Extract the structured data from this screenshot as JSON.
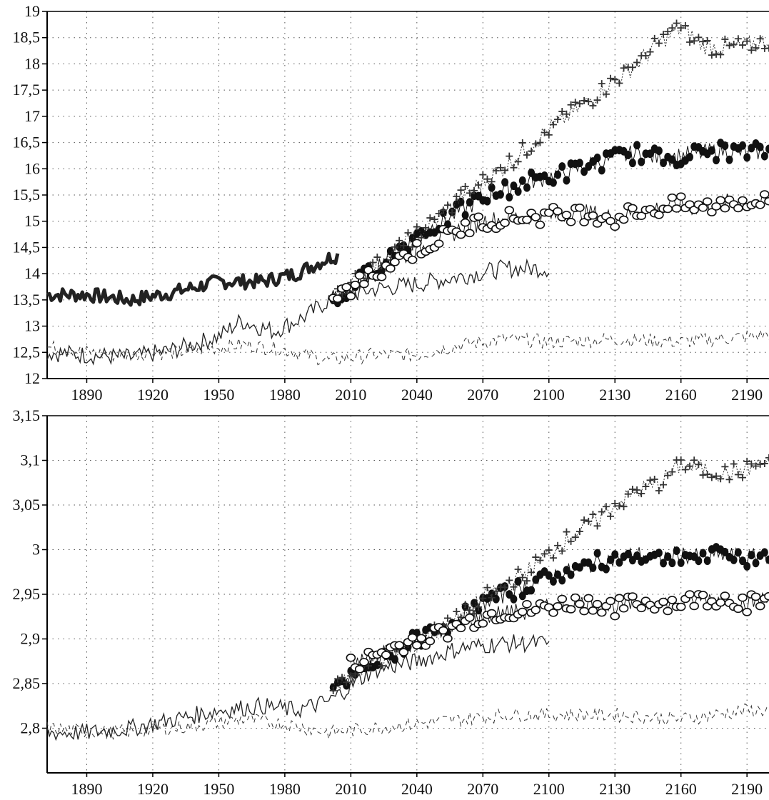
{
  "chart_data": [
    {
      "type": "line",
      "title": "",
      "xlabel": "",
      "ylabel": "",
      "xlim": [
        1872,
        2200
      ],
      "ylim": [
        12,
        19
      ],
      "x_ticks": [
        1890,
        1920,
        1950,
        1980,
        2010,
        2040,
        2070,
        2100,
        2130,
        2160,
        2190
      ],
      "x_tick_labels": [
        "1890",
        "1920",
        "1950",
        "1980",
        "2010",
        "2040",
        "2070",
        "2100",
        "2130",
        "2160",
        "2190"
      ],
      "y_ticks": [
        12,
        12.5,
        13,
        13.5,
        14,
        14.5,
        15,
        15.5,
        16,
        16.5,
        17,
        17.5,
        18,
        18.5,
        19
      ],
      "y_tick_labels": [
        "12",
        "12,5",
        "13",
        "13,5",
        "14",
        "14,5",
        "15",
        "15,5",
        "16",
        "16,5",
        "17",
        "17,5",
        "18",
        "18,5",
        "19"
      ],
      "grid": true,
      "series": [
        {
          "style": "thick-solid",
          "color": "#222222",
          "x": [
            1872,
            1890,
            1910,
            1930,
            1950,
            1970,
            1985,
            2000,
            2004
          ],
          "y": [
            13.6,
            13.6,
            13.5,
            13.65,
            13.85,
            13.85,
            14.0,
            14.3,
            14.35
          ]
        },
        {
          "style": "thin-solid",
          "color": "#222222",
          "x": [
            1872,
            1890,
            1910,
            1930,
            1950,
            1960,
            1975,
            1990,
            2000,
            2020,
            2040,
            2060,
            2080,
            2100
          ],
          "y": [
            12.5,
            12.45,
            12.4,
            12.55,
            12.8,
            13.1,
            12.9,
            13.2,
            13.5,
            13.7,
            13.8,
            13.95,
            14.1,
            14.1
          ]
        },
        {
          "style": "dashed",
          "color": "#333333",
          "x": [
            1872,
            1900,
            1930,
            1960,
            1980,
            2000,
            2020,
            2040,
            2060,
            2080,
            2100,
            2130,
            2160,
            2190,
            2200
          ],
          "y": [
            12.6,
            12.45,
            12.5,
            12.65,
            12.55,
            12.35,
            12.45,
            12.45,
            12.65,
            12.75,
            12.7,
            12.75,
            12.7,
            12.8,
            12.85
          ]
        },
        {
          "style": "filled-circle",
          "color": "#111111",
          "x": [
            2002,
            2010,
            2020,
            2030,
            2040,
            2050,
            2060,
            2070,
            2080,
            2090,
            2100,
            2110,
            2120,
            2130,
            2140,
            2150,
            2160,
            2170,
            2180,
            2190,
            2200
          ],
          "y": [
            13.4,
            13.7,
            14.1,
            14.4,
            14.75,
            14.95,
            15.2,
            15.45,
            15.6,
            15.75,
            15.85,
            15.95,
            16.1,
            16.2,
            16.3,
            16.2,
            16.25,
            16.3,
            16.35,
            16.3,
            16.35
          ]
        },
        {
          "style": "plus",
          "color": "#333333",
          "x": [
            2002,
            2010,
            2020,
            2030,
            2040,
            2050,
            2060,
            2070,
            2080,
            2090,
            2100,
            2110,
            2120,
            2130,
            2140,
            2150,
            2160,
            2170,
            2180,
            2190,
            2200
          ],
          "y": [
            13.5,
            13.8,
            14.1,
            14.4,
            14.75,
            15.05,
            15.45,
            15.75,
            16.05,
            16.4,
            16.75,
            17.05,
            17.35,
            17.7,
            18.0,
            18.4,
            18.7,
            18.35,
            18.3,
            18.35,
            18.45
          ]
        },
        {
          "style": "open-circle",
          "color": "#111111",
          "x": [
            2002,
            2010,
            2020,
            2030,
            2040,
            2050,
            2060,
            2070,
            2080,
            2090,
            2100,
            2110,
            2120,
            2130,
            2140,
            2150,
            2160,
            2170,
            2180,
            2190,
            2200
          ],
          "y": [
            13.5,
            13.7,
            14.0,
            14.25,
            14.45,
            14.65,
            14.85,
            15.0,
            15.05,
            15.1,
            15.1,
            15.15,
            15.15,
            15.05,
            15.2,
            15.25,
            15.3,
            15.25,
            15.35,
            15.4,
            15.35
          ]
        }
      ]
    },
    {
      "type": "line",
      "title": "",
      "xlabel": "",
      "ylabel": "",
      "xlim": [
        1872,
        2200
      ],
      "ylim": [
        2.75,
        3.15
      ],
      "x_ticks": [
        1890,
        1920,
        1950,
        1980,
        2010,
        2040,
        2070,
        2100,
        2130,
        2160,
        2190
      ],
      "x_tick_labels": [
        "1890",
        "1920",
        "1950",
        "1980",
        "2010",
        "2040",
        "2070",
        "2100",
        "2130",
        "2160",
        "2190"
      ],
      "y_ticks": [
        2.8,
        2.85,
        2.9,
        2.95,
        3.0,
        3.05,
        3.1,
        3.15
      ],
      "y_tick_labels": [
        "2,8",
        "2,85",
        "2,9",
        "2,95",
        "3",
        "3,05",
        "3,1",
        "3,15"
      ],
      "grid": true,
      "series": [
        {
          "style": "thin-solid",
          "color": "#222222",
          "x": [
            1872,
            1890,
            1910,
            1930,
            1950,
            1970,
            1985,
            2000,
            2020,
            2040,
            2060,
            2080,
            2100
          ],
          "y": [
            2.795,
            2.795,
            2.8,
            2.81,
            2.82,
            2.825,
            2.82,
            2.83,
            2.865,
            2.875,
            2.89,
            2.895,
            2.895
          ]
        },
        {
          "style": "dashed",
          "color": "#333333",
          "x": [
            1872,
            1900,
            1930,
            1960,
            1980,
            2000,
            2020,
            2040,
            2060,
            2080,
            2100,
            2130,
            2160,
            2190,
            2200
          ],
          "y": [
            2.8,
            2.795,
            2.8,
            2.81,
            2.805,
            2.795,
            2.8,
            2.805,
            2.81,
            2.815,
            2.815,
            2.815,
            2.81,
            2.82,
            2.82
          ]
        },
        {
          "style": "filled-circle",
          "color": "#111111",
          "x": [
            2002,
            2010,
            2020,
            2030,
            2040,
            2050,
            2060,
            2070,
            2080,
            2090,
            2100,
            2110,
            2120,
            2130,
            2140,
            2150,
            2160,
            2170,
            2180,
            2190,
            2200
          ],
          "y": [
            2.84,
            2.855,
            2.87,
            2.885,
            2.9,
            2.91,
            2.925,
            2.94,
            2.95,
            2.96,
            2.97,
            2.975,
            2.985,
            2.99,
            2.995,
            2.99,
            2.995,
            2.99,
            2.995,
            2.99,
            2.995
          ]
        },
        {
          "style": "plus",
          "color": "#333333",
          "x": [
            2002,
            2010,
            2020,
            2030,
            2040,
            2050,
            2060,
            2070,
            2080,
            2090,
            2100,
            2110,
            2120,
            2130,
            2140,
            2150,
            2160,
            2170,
            2180,
            2190,
            2200
          ],
          "y": [
            2.845,
            2.86,
            2.875,
            2.885,
            2.895,
            2.91,
            2.925,
            2.945,
            2.96,
            2.975,
            2.995,
            3.015,
            3.03,
            3.05,
            3.065,
            3.075,
            3.095,
            3.09,
            3.085,
            3.09,
            3.1
          ]
        },
        {
          "style": "open-circle",
          "color": "#111111",
          "x": [
            2010,
            2020,
            2030,
            2040,
            2050,
            2060,
            2070,
            2080,
            2090,
            2100,
            2110,
            2120,
            2130,
            2140,
            2150,
            2160,
            2170,
            2180,
            2190,
            2200
          ],
          "y": [
            2.87,
            2.88,
            2.89,
            2.9,
            2.905,
            2.915,
            2.925,
            2.93,
            2.93,
            2.935,
            2.94,
            2.94,
            2.935,
            2.94,
            2.94,
            2.94,
            2.945,
            2.945,
            2.94,
            2.945
          ]
        }
      ]
    }
  ]
}
